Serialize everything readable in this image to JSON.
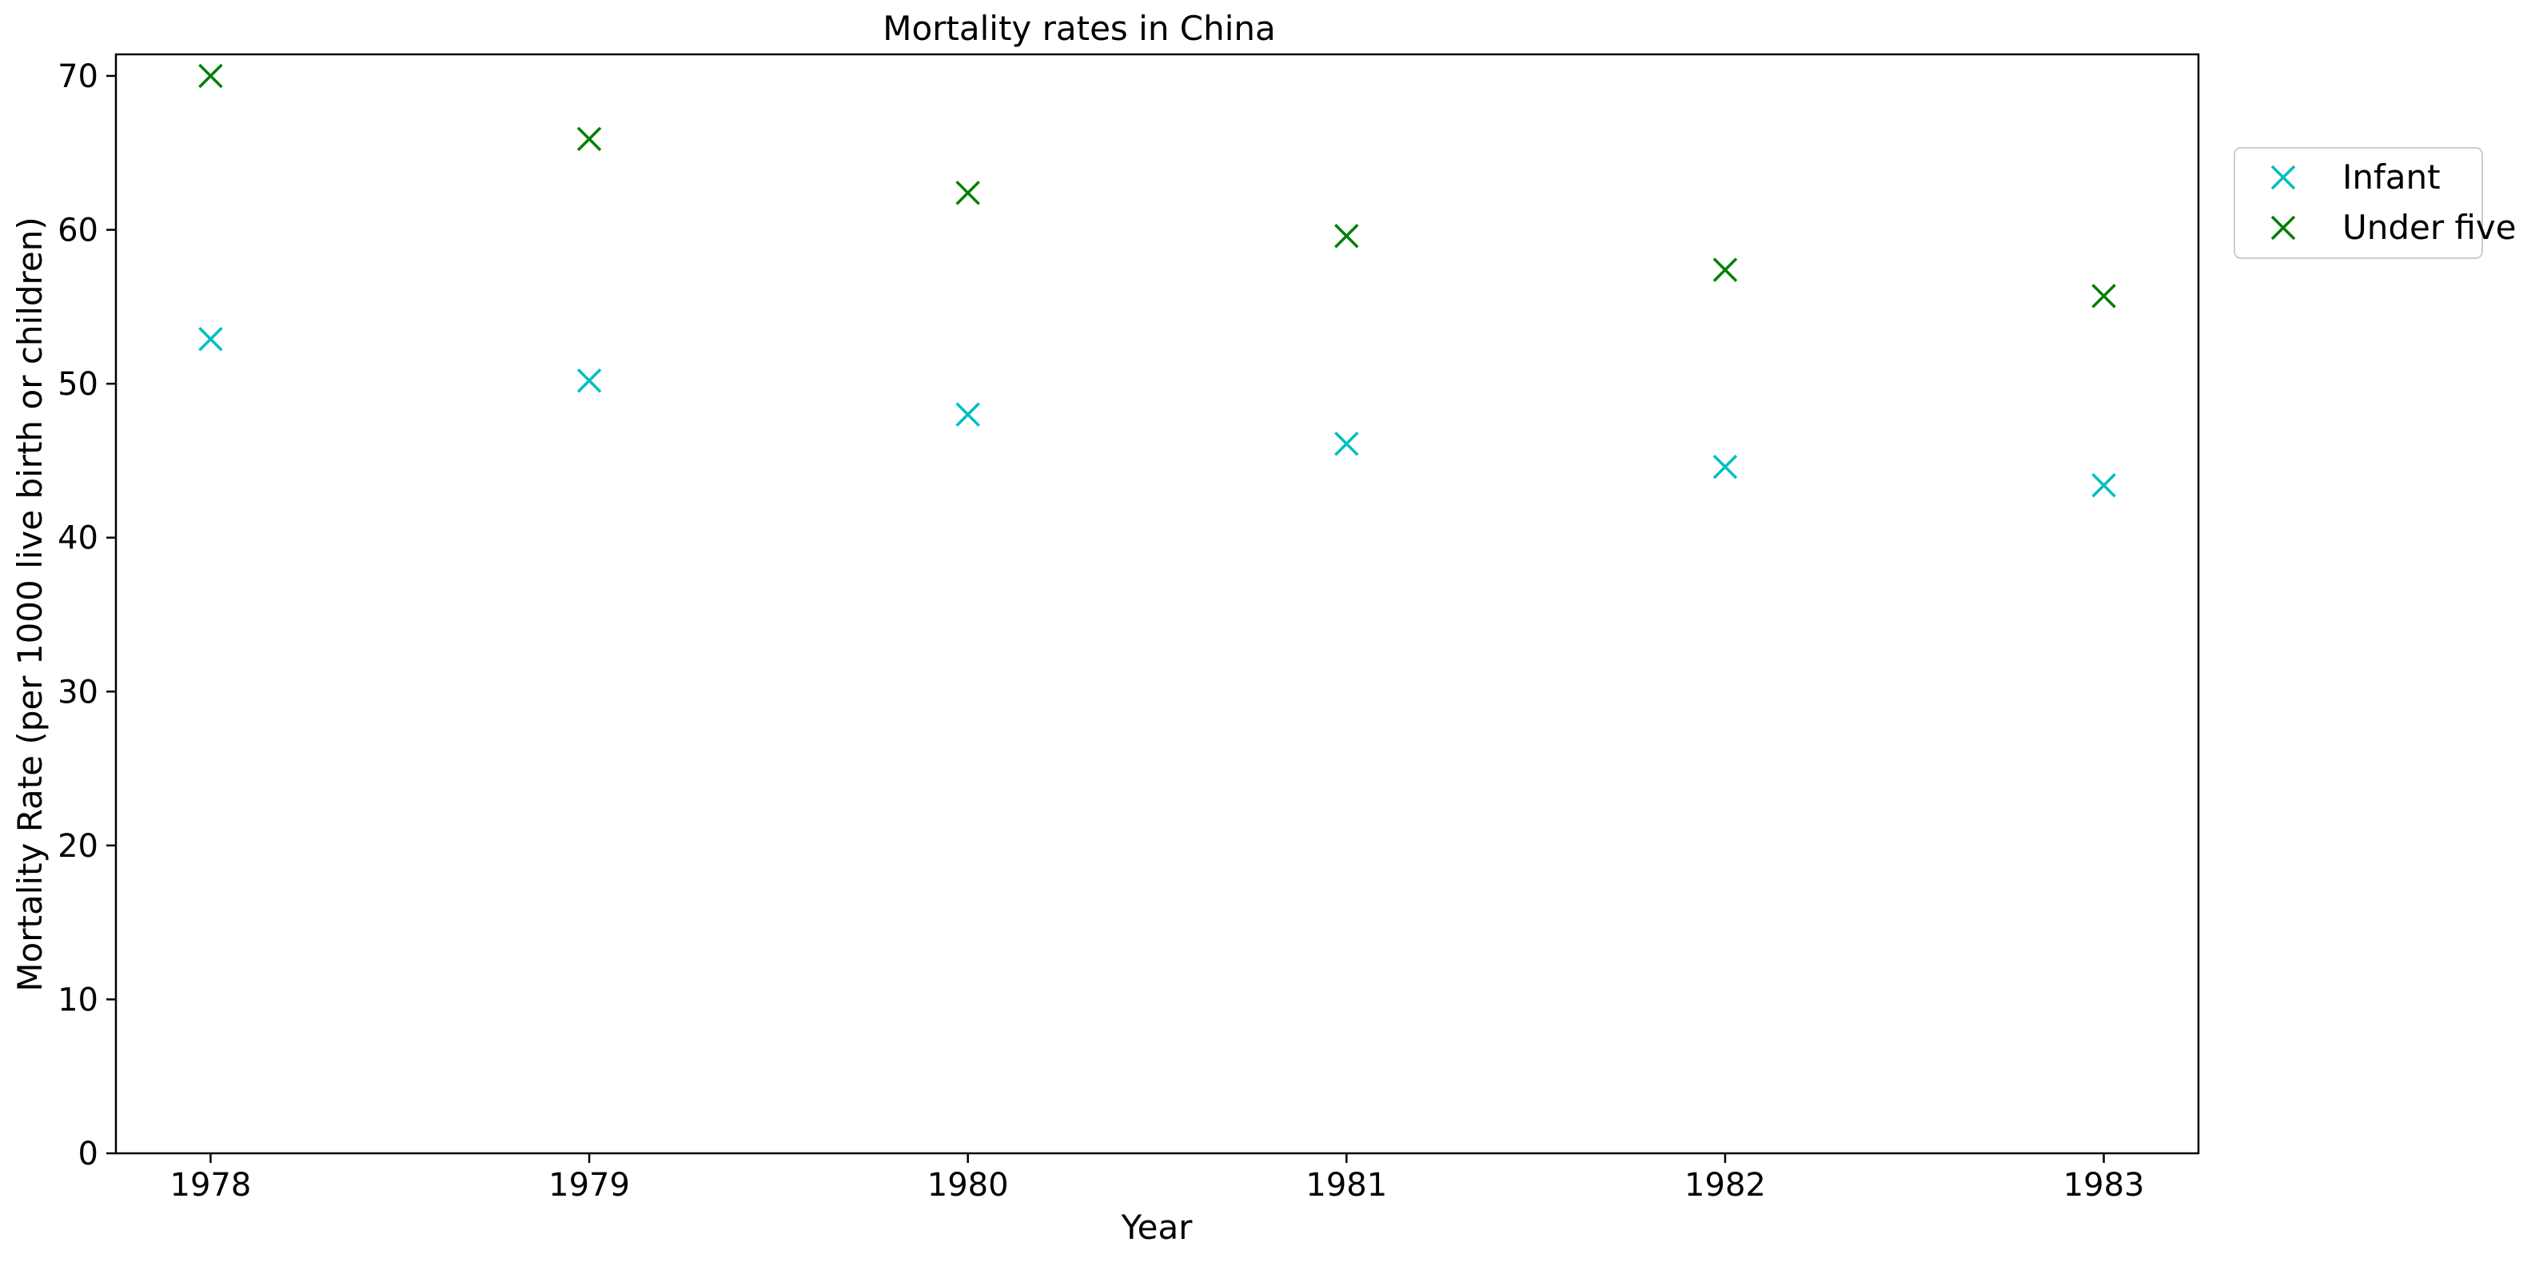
{
  "chart_data": {
    "type": "scatter",
    "title": "Mortality rates in China",
    "xlabel": "Year",
    "ylabel": "Mortality Rate (per 1000 live birth or children)",
    "x": [
      1978,
      1979,
      1980,
      1981,
      1982,
      1983
    ],
    "x_ticks": [
      "1978",
      "1979",
      "1980",
      "1981",
      "1982",
      "1983"
    ],
    "xlim": [
      1977.75,
      1983.25
    ],
    "ylim": [
      0,
      71.4
    ],
    "y_ticks": [
      0,
      10,
      20,
      30,
      40,
      50,
      60,
      70
    ],
    "grid": false,
    "legend_position": "outside-right-top",
    "series": [
      {
        "name": "Infant",
        "marker": "x",
        "color": "#00bfbf",
        "values": [
          52.9,
          50.2,
          48.0,
          46.1,
          44.6,
          43.4
        ]
      },
      {
        "name": "Under five",
        "marker": "x",
        "color": "#008000",
        "values": [
          70.0,
          65.9,
          62.4,
          59.6,
          57.4,
          55.7
        ]
      }
    ]
  }
}
